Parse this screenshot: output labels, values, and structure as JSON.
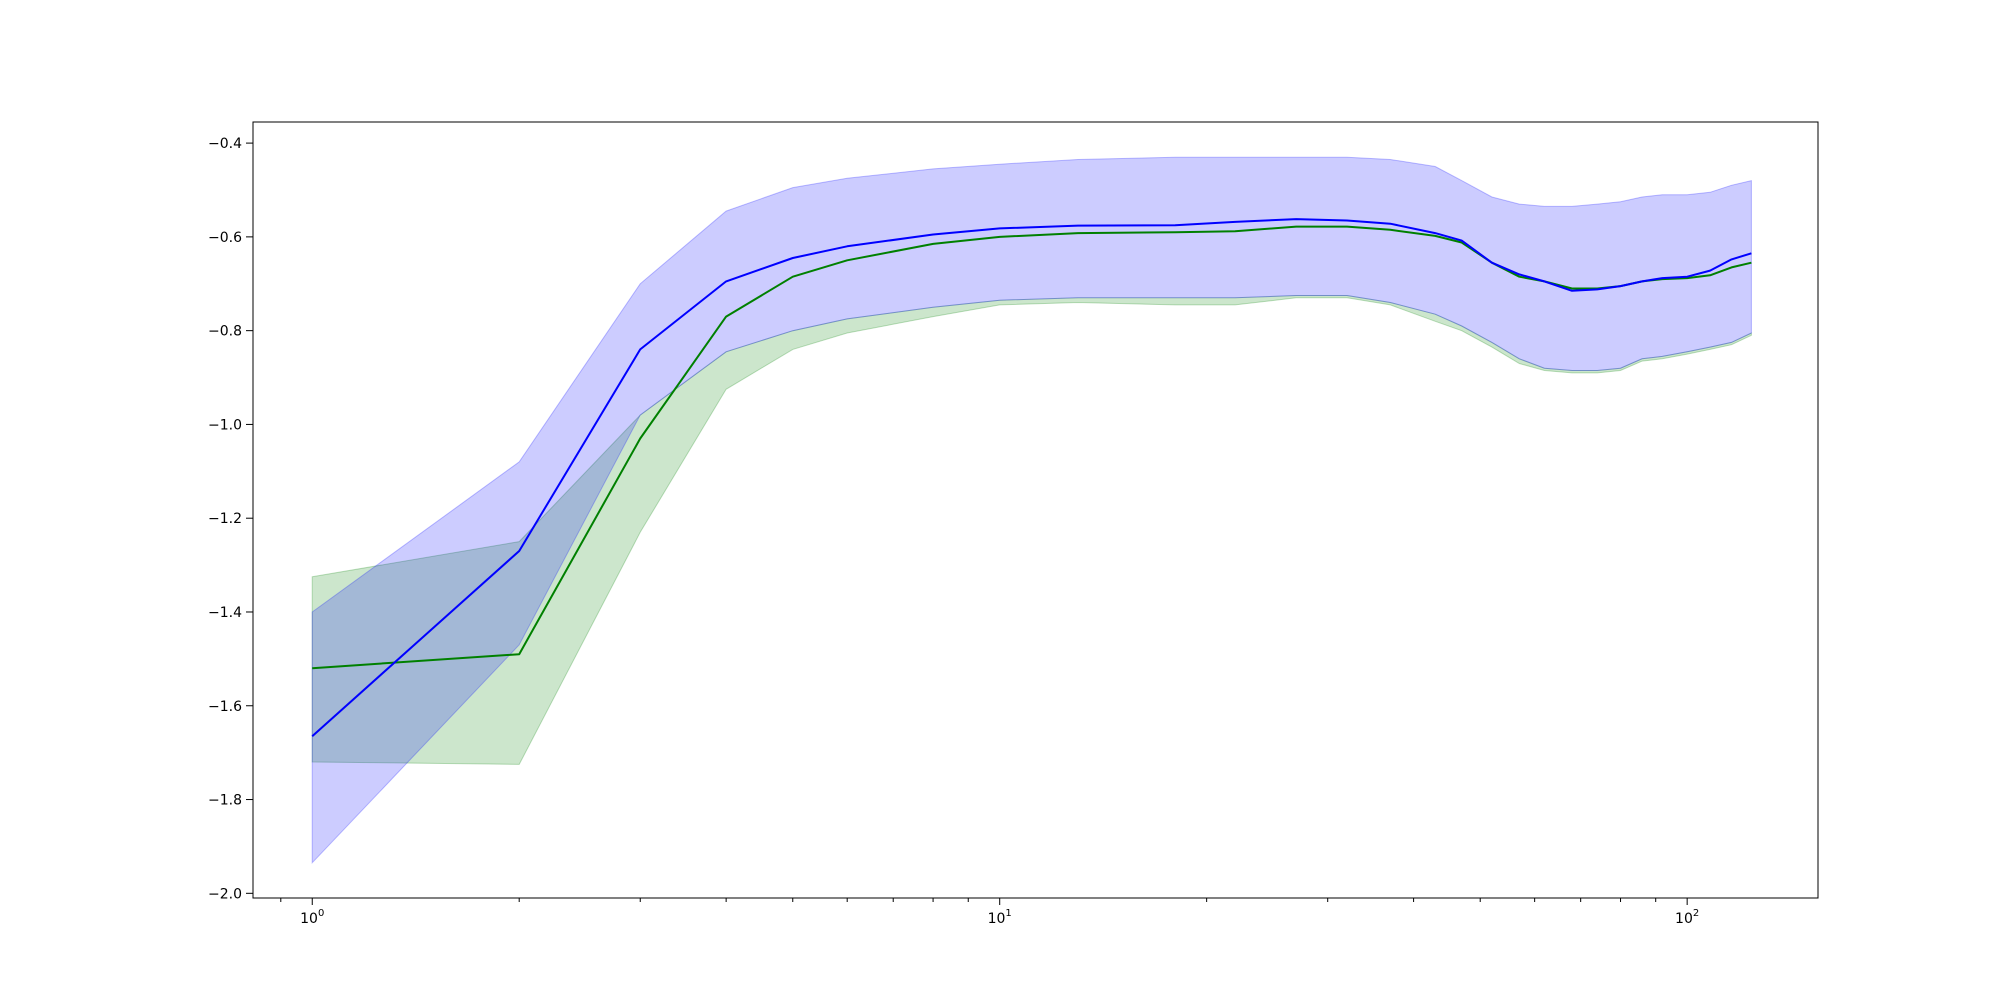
{
  "chart_data": {
    "type": "line",
    "title": "",
    "xlabel": "",
    "ylabel": "",
    "x_scale": "log",
    "xlim": [
      0.82,
      155
    ],
    "ylim": [
      -2.01,
      -0.355
    ],
    "grid": false,
    "legend": "none",
    "x_ticks": [
      {
        "value": 1,
        "base": "10",
        "exp": "0"
      },
      {
        "value": 10,
        "base": "10",
        "exp": "1"
      },
      {
        "value": 100,
        "base": "10",
        "exp": "2"
      }
    ],
    "y_ticks": [
      {
        "value": -0.4,
        "label": "−0.4"
      },
      {
        "value": -0.6,
        "label": "−0.6"
      },
      {
        "value": -0.8,
        "label": "−0.8"
      },
      {
        "value": -1.0,
        "label": "−1.0"
      },
      {
        "value": -1.2,
        "label": "−1.2"
      },
      {
        "value": -1.4,
        "label": "−1.4"
      },
      {
        "value": -1.6,
        "label": "−1.6"
      },
      {
        "value": -1.8,
        "label": "−1.8"
      },
      {
        "value": -2.0,
        "label": "−2.0"
      }
    ],
    "series": [
      {
        "color": "#008000",
        "band_color": "#008000",
        "band_opacity": 0.2,
        "x": [
          1,
          2,
          3,
          4,
          5,
          6,
          8,
          10,
          13,
          18,
          22,
          27,
          32,
          37,
          43,
          47,
          52,
          57,
          62,
          68,
          74,
          80,
          86,
          92,
          100,
          108,
          116,
          124
        ],
        "y": [
          -1.52,
          -1.49,
          -1.03,
          -0.77,
          -0.685,
          -0.65,
          -0.615,
          -0.6,
          -0.592,
          -0.59,
          -0.588,
          -0.578,
          -0.578,
          -0.585,
          -0.598,
          -0.612,
          -0.655,
          -0.685,
          -0.695,
          -0.71,
          -0.71,
          -0.705,
          -0.695,
          -0.69,
          -0.688,
          -0.682,
          -0.665,
          -0.655
        ],
        "lower": [
          -1.72,
          -1.725,
          -1.23,
          -0.925,
          -0.84,
          -0.805,
          -0.77,
          -0.745,
          -0.74,
          -0.745,
          -0.745,
          -0.73,
          -0.73,
          -0.745,
          -0.78,
          -0.8,
          -0.835,
          -0.87,
          -0.885,
          -0.89,
          -0.89,
          -0.885,
          -0.865,
          -0.86,
          -0.85,
          -0.84,
          -0.83,
          -0.81
        ],
        "upper": [
          -1.325,
          -1.25,
          -0.98,
          -0.845,
          -0.8,
          -0.775,
          -0.75,
          -0.735,
          -0.73,
          -0.73,
          -0.73,
          -0.725,
          -0.725,
          -0.74,
          -0.765,
          -0.79,
          -0.825,
          -0.86,
          -0.88,
          -0.885,
          -0.885,
          -0.88,
          -0.86,
          -0.855,
          -0.845,
          -0.835,
          -0.825,
          -0.805
        ]
      },
      {
        "color": "#0000ff",
        "band_color": "#0000ff",
        "band_opacity": 0.2,
        "x": [
          1,
          2,
          3,
          4,
          5,
          6,
          8,
          10,
          13,
          18,
          22,
          27,
          32,
          37,
          43,
          47,
          52,
          57,
          62,
          68,
          74,
          80,
          86,
          92,
          100,
          108,
          116,
          124
        ],
        "y": [
          -1.665,
          -1.27,
          -0.84,
          -0.695,
          -0.645,
          -0.62,
          -0.595,
          -0.582,
          -0.576,
          -0.575,
          -0.568,
          -0.562,
          -0.565,
          -0.572,
          -0.592,
          -0.608,
          -0.655,
          -0.68,
          -0.695,
          -0.715,
          -0.712,
          -0.705,
          -0.695,
          -0.688,
          -0.685,
          -0.672,
          -0.648,
          -0.635
        ],
        "lower": [
          -1.935,
          -1.47,
          -0.98,
          -0.845,
          -0.8,
          -0.775,
          -0.75,
          -0.735,
          -0.73,
          -0.73,
          -0.73,
          -0.725,
          -0.725,
          -0.74,
          -0.765,
          -0.79,
          -0.825,
          -0.86,
          -0.88,
          -0.885,
          -0.885,
          -0.88,
          -0.86,
          -0.855,
          -0.845,
          -0.835,
          -0.825,
          -0.805
        ],
        "upper": [
          -1.4,
          -1.08,
          -0.7,
          -0.545,
          -0.495,
          -0.475,
          -0.455,
          -0.445,
          -0.435,
          -0.43,
          -0.43,
          -0.43,
          -0.43,
          -0.435,
          -0.45,
          -0.48,
          -0.515,
          -0.53,
          -0.535,
          -0.535,
          -0.53,
          -0.525,
          -0.515,
          -0.51,
          -0.51,
          -0.505,
          -0.49,
          -0.48
        ]
      }
    ]
  }
}
